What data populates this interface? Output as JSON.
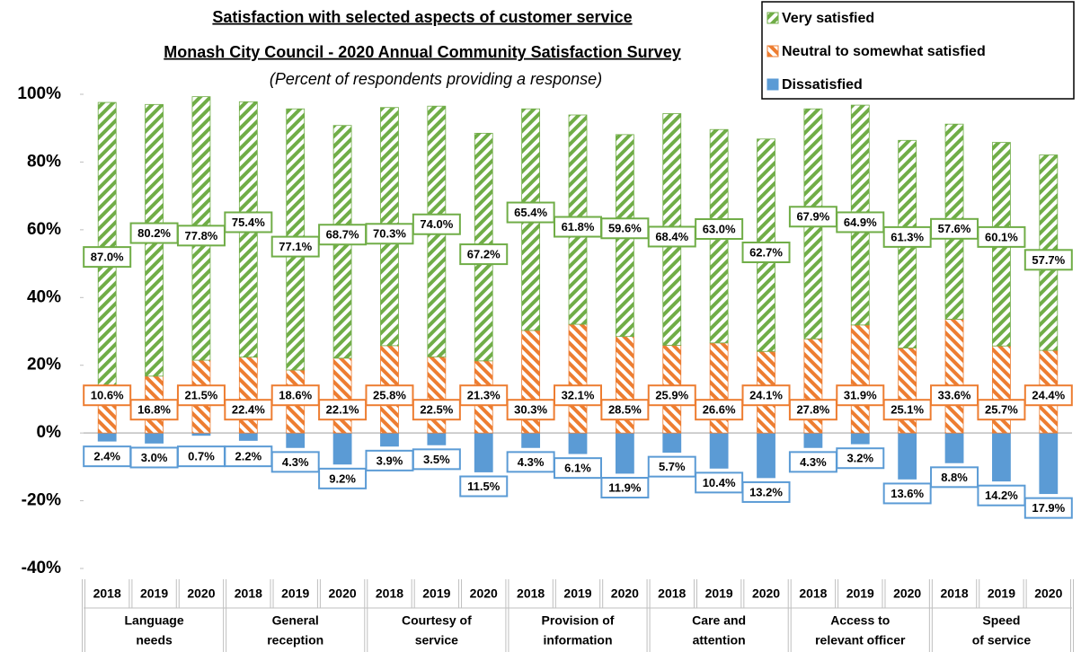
{
  "chart_data": {
    "type": "stacked_bar",
    "title": "Satisfaction with selected aspects of customer service",
    "subtitle": "Monash City Council - 2020 Annual Community Satisfaction Survey",
    "note": "(Percent of respondents providing a response)",
    "categories": [
      "2018",
      "2019",
      "2020",
      "2018",
      "2019",
      "2020",
      "2018",
      "2019",
      "2020",
      "2018",
      "2019",
      "2020",
      "2018",
      "2019",
      "2020",
      "2018",
      "2019",
      "2020",
      "2018",
      "2019",
      "2020"
    ],
    "groups": [
      [
        "Language",
        "needs"
      ],
      [
        "General",
        "reception"
      ],
      [
        "Courtesy of",
        "service"
      ],
      [
        "Provision of",
        "information"
      ],
      [
        "Care and",
        "attention"
      ],
      [
        "Access to",
        "relevant officer"
      ],
      [
        "Speed",
        "of service"
      ]
    ],
    "series": [
      {
        "name": "Very satisfied",
        "color": "#70ad47",
        "values": [
          87.0,
          80.2,
          77.8,
          75.4,
          77.1,
          68.7,
          70.3,
          74.0,
          67.2,
          65.4,
          61.8,
          59.6,
          68.4,
          63.0,
          62.7,
          67.9,
          64.9,
          61.3,
          57.6,
          60.1,
          57.7
        ],
        "value_labels": [
          "87.0%",
          "80.2%",
          "77.8%",
          "75.4%",
          "77.1%",
          "68.7%",
          "70.3%",
          "74.0%",
          "67.2%",
          "65.4%",
          "61.8%",
          "59.6%",
          "68.4%",
          "63.0%",
          "62.7%",
          "67.9%",
          "64.9%",
          "61.3%",
          "57.6%",
          "60.1%",
          "57.7%"
        ]
      },
      {
        "name": "Neutral to somewhat satisfied",
        "color": "#ed7d31",
        "values": [
          10.6,
          16.8,
          21.5,
          22.4,
          18.6,
          22.1,
          25.8,
          22.5,
          21.3,
          30.3,
          32.1,
          28.5,
          25.9,
          26.6,
          24.1,
          27.8,
          31.9,
          25.1,
          33.6,
          25.7,
          24.4
        ],
        "value_labels": [
          "10.6%",
          "16.8%",
          "21.5%",
          "22.4%",
          "18.6%",
          "22.1%",
          "25.8%",
          "22.5%",
          "21.3%",
          "30.3%",
          "32.1%",
          "28.5%",
          "25.9%",
          "26.6%",
          "24.1%",
          "27.8%",
          "31.9%",
          "25.1%",
          "33.6%",
          "25.7%",
          "24.4%"
        ]
      },
      {
        "name": "Dissatisfied",
        "color": "#5b9bd5",
        "values": [
          -2.4,
          -3.0,
          -0.7,
          -2.2,
          -4.3,
          -9.2,
          -3.9,
          -3.5,
          -11.5,
          -4.3,
          -6.1,
          -11.9,
          -5.7,
          -10.4,
          -13.2,
          -4.3,
          -3.2,
          -13.6,
          -8.8,
          -14.2,
          -17.9
        ],
        "value_labels": [
          "2.4%",
          "3.0%",
          "0.7%",
          "2.2%",
          "4.3%",
          "9.2%",
          "3.9%",
          "3.5%",
          "11.5%",
          "4.3%",
          "6.1%",
          "11.9%",
          "5.7%",
          "10.4%",
          "13.2%",
          "4.3%",
          "3.2%",
          "13.6%",
          "8.8%",
          "14.2%",
          "17.9%"
        ]
      }
    ],
    "ylim": [
      -40,
      100
    ],
    "yticks": [
      {
        "value": -40,
        "label": "-40%"
      },
      {
        "value": -20,
        "label": "-20%"
      },
      {
        "value": 0,
        "label": "0%"
      },
      {
        "value": 20,
        "label": "20%"
      },
      {
        "value": 40,
        "label": "40%"
      },
      {
        "value": 60,
        "label": "60%"
      },
      {
        "value": 80,
        "label": "80%"
      },
      {
        "value": 100,
        "label": "100%"
      }
    ],
    "legend": "top-right"
  }
}
